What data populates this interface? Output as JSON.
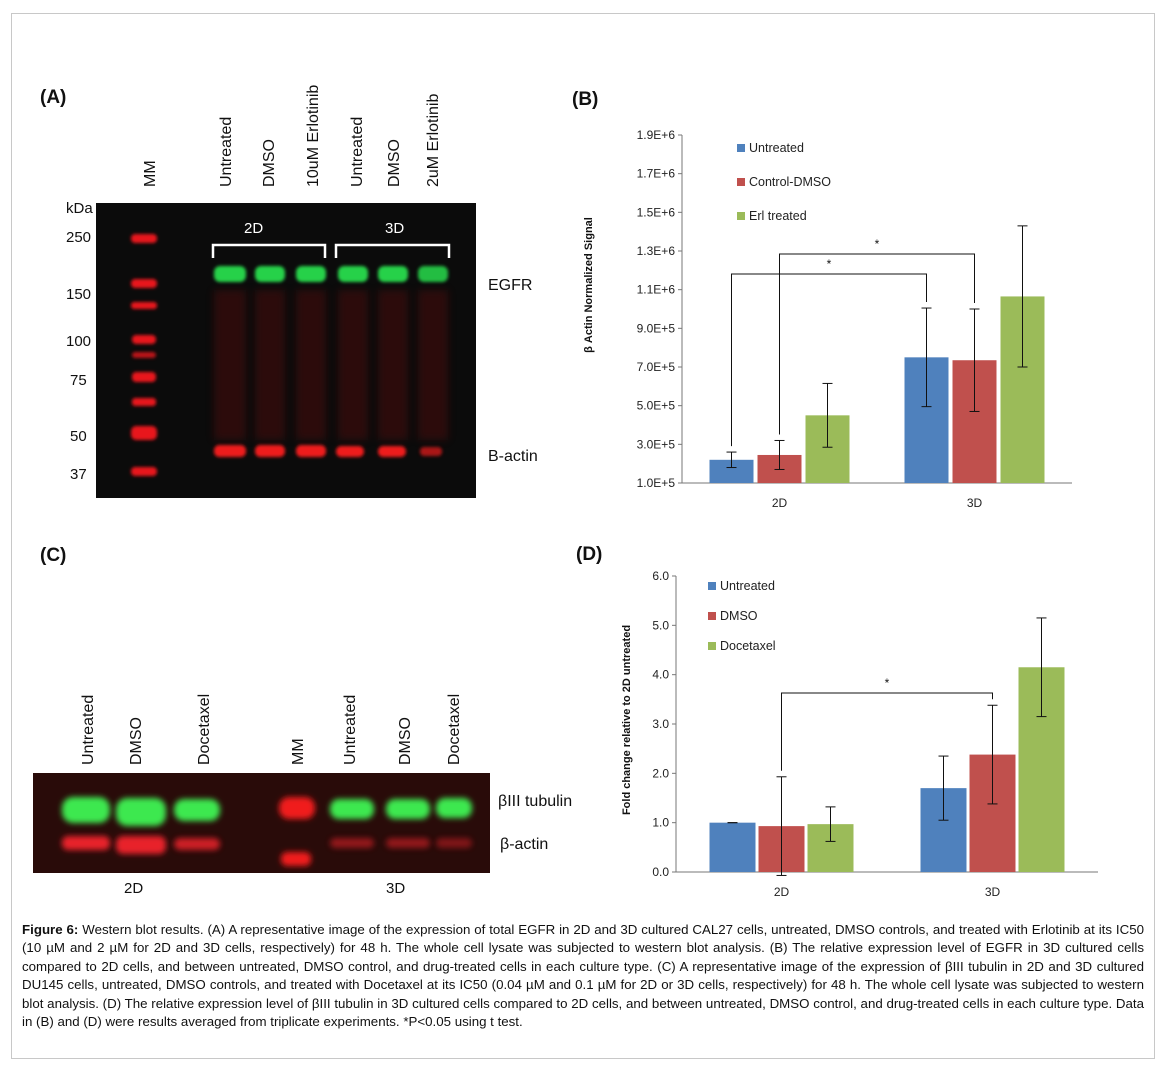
{
  "panelA": {
    "panel_label": "(A)",
    "lane_labels": [
      "MM",
      "Untreated",
      "DMSO",
      "10uM Erlotinib",
      "Untreated",
      "DMSO",
      "2uM Erlotinib"
    ],
    "kda_title": "kDa",
    "kda_markers": [
      "250",
      "150",
      "100",
      "75",
      "50",
      "37"
    ],
    "group_labels": [
      "2D",
      "3D"
    ],
    "band_labels": [
      "EGFR",
      "Β-actin"
    ]
  },
  "panelC": {
    "panel_label": "(C)",
    "lane_labels_2d": [
      "Untreated",
      "DMSO",
      "Docetaxel"
    ],
    "lane_labels_3d": [
      "MM",
      "Untreated",
      "DMSO",
      "Docetaxel"
    ],
    "band_labels": [
      "βIII tubulin",
      "β-actin"
    ],
    "group_labels": [
      "2D",
      "3D"
    ]
  },
  "colors": {
    "untreated": "#4f81bd",
    "dmso": "#c0504d",
    "treated": "#9bbb59"
  },
  "chart_data": [
    {
      "panel": "(B)",
      "type": "bar",
      "categories": [
        "2D",
        "3D"
      ],
      "series": [
        {
          "name": "Untreated",
          "values": [
            220000,
            750000
          ],
          "errors": [
            40000,
            255000
          ]
        },
        {
          "name": "Control-DMSO",
          "values": [
            245000,
            735000
          ],
          "errors": [
            75000,
            265000
          ]
        },
        {
          "name": "Erl treated",
          "values": [
            450000,
            1065000
          ],
          "errors": [
            165000,
            365000
          ]
        }
      ],
      "ylabel": "β Actin Normalized Signal",
      "ylim": [
        100000,
        1900000
      ],
      "yticks": [
        "1.0E+5",
        "3.0E+5",
        "5.0E+5",
        "7.0E+5",
        "9.0E+5",
        "1.1E+6",
        "1.3E+6",
        "1.5E+6",
        "1.7E+6",
        "1.9E+6"
      ],
      "ytick_values": [
        100000,
        300000,
        500000,
        700000,
        900000,
        1100000,
        1300000,
        1500000,
        1700000,
        1900000
      ],
      "significance": [
        {
          "label": "*",
          "from": "2D Untreated",
          "to": "3D Untreated"
        },
        {
          "label": "*",
          "from": "2D Control-DMSO",
          "to": "3D Control-DMSO"
        }
      ],
      "legend_position": "top-left"
    },
    {
      "panel": "(D)",
      "type": "bar",
      "categories": [
        "2D",
        "3D"
      ],
      "series": [
        {
          "name": "Untreated",
          "values": [
            1.0,
            1.7
          ],
          "errors": [
            0.0,
            0.65
          ]
        },
        {
          "name": "DMSO",
          "values": [
            0.93,
            2.38
          ],
          "errors": [
            1.0,
            1.0
          ]
        },
        {
          "name": "Docetaxel",
          "values": [
            0.97,
            4.15
          ],
          "errors": [
            0.35,
            1.0
          ]
        }
      ],
      "ylabel": "Fold change relative to 2D untreated",
      "ylim": [
        0,
        6
      ],
      "yticks": [
        "0.0",
        "1.0",
        "2.0",
        "3.0",
        "4.0",
        "5.0",
        "6.0"
      ],
      "ytick_values": [
        0,
        1,
        2,
        3,
        4,
        5,
        6
      ],
      "significance": [
        {
          "label": "*",
          "from": "2D DMSO",
          "to": "3D DMSO"
        }
      ],
      "legend_position": "top-left"
    }
  ],
  "caption": {
    "figure_label": "Figure 6:",
    "text": " Western blot results. (A) A representative image of the expression of total EGFR in 2D and 3D cultured CAL27 cells, untreated, DMSO controls, and treated with Erlotinib at its IC50 (10 µM and 2 µM for 2D and 3D cells, respectively) for 48 h. The whole cell lysate was subjected to western blot analysis. (B) The relative expression level of EGFR in 3D cultured cells compared to 2D cells, and between untreated, DMSO control, and drug-treated cells in each culture type. (C) A representative image of the expression of βIII tubulin in 2D and 3D cultured DU145 cells, untreated, DMSO controls, and treated with Docetaxel at its IC50 (0.04 µM and 0.1 µM for 2D or 3D cells, respectively) for 48 h. The whole cell lysate was subjected to western blot analysis. (D) The relative expression level of βIII tubulin in 3D cultured cells compared to 2D cells, and between untreated, DMSO control, and drug-treated cells in each culture type. Data in (B) and (D) were results averaged from triplicate experiments. *P<0.05 using t test."
  }
}
